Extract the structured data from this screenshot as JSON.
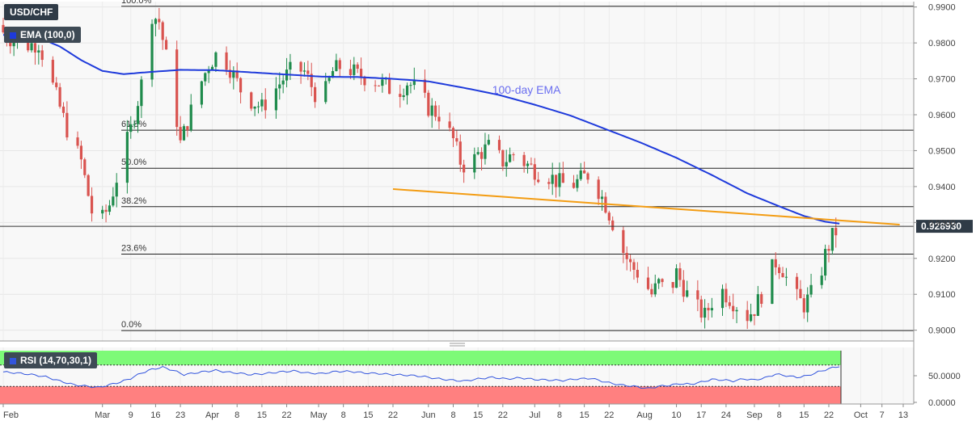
{
  "chart_data": {
    "type": "candlestick",
    "symbol": "USD/CHF",
    "indicator_label": "EMA (100,0)",
    "ema_annotation": "100-day EMA",
    "y_range": [
      0.897,
      0.9915
    ],
    "y_ticks": [
      "0.9900",
      "0.9800",
      "0.9700",
      "0.9600",
      "0.9500",
      "0.9400",
      "0.9300",
      "0.9200",
      "0.9100",
      "0.9000"
    ],
    "current_price": "0.928930",
    "current_value": 0.92893,
    "x_labels": [
      {
        "label": "Feb",
        "day": 0
      },
      {
        "label": "Mar",
        "day": 28
      },
      {
        "label": "9",
        "day": 36
      },
      {
        "label": "16",
        "day": 43
      },
      {
        "label": "23",
        "day": 50
      },
      {
        "label": "Apr",
        "day": 59
      },
      {
        "label": "8",
        "day": 66
      },
      {
        "label": "15",
        "day": 73
      },
      {
        "label": "22",
        "day": 80
      },
      {
        "label": "May",
        "day": 89
      },
      {
        "label": "8",
        "day": 96
      },
      {
        "label": "15",
        "day": 103
      },
      {
        "label": "22",
        "day": 110
      },
      {
        "label": "Jun",
        "day": 120
      },
      {
        "label": "8",
        "day": 127
      },
      {
        "label": "15",
        "day": 134
      },
      {
        "label": "22",
        "day": 141
      },
      {
        "label": "Jul",
        "day": 150
      },
      {
        "label": "8",
        "day": 157
      },
      {
        "label": "15",
        "day": 164
      },
      {
        "label": "22",
        "day": 171
      },
      {
        "label": "Aug",
        "day": 181
      },
      {
        "label": "10",
        "day": 190
      },
      {
        "label": "17",
        "day": 197
      },
      {
        "label": "24",
        "day": 204
      },
      {
        "label": "Sep",
        "day": 212
      },
      {
        "label": "8",
        "day": 219
      },
      {
        "label": "15",
        "day": 226
      },
      {
        "label": "22",
        "day": 233
      },
      {
        "label": "Oct",
        "day": 242
      },
      {
        "label": "7",
        "day": 248
      },
      {
        "label": "13",
        "day": 254
      }
    ],
    "fibonacci": [
      {
        "label": "100.0%",
        "value": 0.9902
      },
      {
        "label": "61.8%",
        "value": 0.9557
      },
      {
        "label": "50.0%",
        "value": 0.9451
      },
      {
        "label": "38.2%",
        "value": 0.9344
      },
      {
        "label": "23.6%",
        "value": 0.9212
      },
      {
        "label": "0.0%",
        "value": 0.8999
      }
    ],
    "trendline": {
      "start": [
        110,
        0.9393
      ],
      "end": [
        253,
        0.9294
      ]
    },
    "close_anchors": [
      [
        0,
        0.983
      ],
      [
        5,
        0.979
      ],
      [
        10,
        0.98
      ],
      [
        14,
        0.968
      ],
      [
        18,
        0.956
      ],
      [
        22,
        0.947
      ],
      [
        25,
        0.933
      ],
      [
        27,
        0.929
      ],
      [
        30,
        0.935
      ],
      [
        33,
        0.946
      ],
      [
        36,
        0.956
      ],
      [
        38,
        0.964
      ],
      [
        40,
        0.973
      ],
      [
        42,
        0.988
      ],
      [
        44,
        0.986
      ],
      [
        46,
        0.976
      ],
      [
        48,
        0.965
      ],
      [
        50,
        0.952
      ],
      [
        52,
        0.958
      ],
      [
        55,
        0.967
      ],
      [
        58,
        0.974
      ],
      [
        61,
        0.978
      ],
      [
        64,
        0.973
      ],
      [
        67,
        0.967
      ],
      [
        70,
        0.964
      ],
      [
        73,
        0.962
      ],
      [
        76,
        0.966
      ],
      [
        79,
        0.97
      ],
      [
        82,
        0.973
      ],
      [
        85,
        0.972
      ],
      [
        88,
        0.966
      ],
      [
        90,
        0.964
      ],
      [
        93,
        0.972
      ],
      [
        96,
        0.974
      ],
      [
        100,
        0.971
      ],
      [
        104,
        0.97
      ],
      [
        108,
        0.968
      ],
      [
        111,
        0.966
      ],
      [
        114,
        0.969
      ],
      [
        117,
        0.967
      ],
      [
        120,
        0.962
      ],
      [
        123,
        0.96
      ],
      [
        127,
        0.953
      ],
      [
        129,
        0.947
      ],
      [
        131,
        0.945
      ],
      [
        134,
        0.949
      ],
      [
        137,
        0.951
      ],
      [
        141,
        0.947
      ],
      [
        144,
        0.949
      ],
      [
        148,
        0.946
      ],
      [
        151,
        0.944
      ],
      [
        154,
        0.943
      ],
      [
        157,
        0.941
      ],
      [
        160,
        0.94
      ],
      [
        163,
        0.942
      ],
      [
        166,
        0.944
      ],
      [
        168,
        0.939
      ],
      [
        170,
        0.935
      ],
      [
        172,
        0.93
      ],
      [
        174,
        0.924
      ],
      [
        177,
        0.918
      ],
      [
        180,
        0.915
      ],
      [
        183,
        0.91
      ],
      [
        185,
        0.913
      ],
      [
        188,
        0.91
      ],
      [
        190,
        0.916
      ],
      [
        192,
        0.912
      ],
      [
        194,
        0.908
      ],
      [
        196,
        0.906
      ],
      [
        198,
        0.904
      ],
      [
        200,
        0.908
      ],
      [
        202,
        0.912
      ],
      [
        204,
        0.91
      ],
      [
        206,
        0.908
      ],
      [
        208,
        0.906
      ],
      [
        210,
        0.904
      ],
      [
        212,
        0.906
      ],
      [
        214,
        0.91
      ],
      [
        216,
        0.915
      ],
      [
        218,
        0.919
      ],
      [
        220,
        0.917
      ],
      [
        222,
        0.912
      ],
      [
        224,
        0.909
      ],
      [
        226,
        0.907
      ],
      [
        228,
        0.91
      ],
      [
        230,
        0.913
      ],
      [
        232,
        0.921
      ],
      [
        234,
        0.926
      ],
      [
        236,
        0.9289
      ]
    ],
    "ema_anchors": [
      [
        0,
        0.9822
      ],
      [
        5,
        0.9823
      ],
      [
        10,
        0.9815
      ],
      [
        16,
        0.979
      ],
      [
        22,
        0.9752
      ],
      [
        28,
        0.9722
      ],
      [
        34,
        0.9713
      ],
      [
        40,
        0.9718
      ],
      [
        50,
        0.9725
      ],
      [
        60,
        0.9724
      ],
      [
        70,
        0.9718
      ],
      [
        80,
        0.9712
      ],
      [
        90,
        0.9706
      ],
      [
        100,
        0.9705
      ],
      [
        110,
        0.97
      ],
      [
        120,
        0.9693
      ],
      [
        130,
        0.9675
      ],
      [
        140,
        0.9655
      ],
      [
        150,
        0.9628
      ],
      [
        160,
        0.9598
      ],
      [
        170,
        0.956
      ],
      [
        180,
        0.9522
      ],
      [
        190,
        0.948
      ],
      [
        200,
        0.9432
      ],
      [
        210,
        0.9381
      ],
      [
        220,
        0.9341
      ],
      [
        226,
        0.9318
      ],
      [
        232,
        0.9302
      ],
      [
        236,
        0.9297
      ]
    ],
    "rsi": {
      "label": "RSI (14,70,30,1)",
      "y_ticks": [
        "50.0000",
        "0.0000"
      ],
      "overbought": 70,
      "oversold": 30,
      "anchors": [
        [
          0,
          57
        ],
        [
          4,
          55
        ],
        [
          8,
          52
        ],
        [
          12,
          48
        ],
        [
          16,
          40
        ],
        [
          20,
          33
        ],
        [
          24,
          30
        ],
        [
          27,
          28
        ],
        [
          30,
          33
        ],
        [
          33,
          38
        ],
        [
          36,
          45
        ],
        [
          39,
          55
        ],
        [
          42,
          62
        ],
        [
          45,
          66
        ],
        [
          48,
          60
        ],
        [
          51,
          52
        ],
        [
          54,
          55
        ],
        [
          57,
          58
        ],
        [
          60,
          60
        ],
        [
          63,
          57
        ],
        [
          66,
          55
        ],
        [
          70,
          52
        ],
        [
          74,
          54
        ],
        [
          78,
          57
        ],
        [
          82,
          59
        ],
        [
          86,
          55
        ],
        [
          90,
          54
        ],
        [
          94,
          58
        ],
        [
          98,
          58
        ],
        [
          102,
          55
        ],
        [
          106,
          54
        ],
        [
          110,
          52
        ],
        [
          114,
          51
        ],
        [
          118,
          49
        ],
        [
          122,
          45
        ],
        [
          126,
          42
        ],
        [
          130,
          40
        ],
        [
          134,
          44
        ],
        [
          138,
          47
        ],
        [
          142,
          44
        ],
        [
          146,
          46
        ],
        [
          150,
          43
        ],
        [
          154,
          42
        ],
        [
          158,
          41
        ],
        [
          162,
          44
        ],
        [
          166,
          45
        ],
        [
          170,
          38
        ],
        [
          174,
          33
        ],
        [
          178,
          30
        ],
        [
          182,
          26
        ],
        [
          185,
          30
        ],
        [
          188,
          32
        ],
        [
          191,
          35
        ],
        [
          194,
          34
        ],
        [
          197,
          38
        ],
        [
          200,
          43
        ],
        [
          203,
          42
        ],
        [
          206,
          40
        ],
        [
          209,
          44
        ],
        [
          212,
          42
        ],
        [
          215,
          46
        ],
        [
          218,
          53
        ],
        [
          221,
          50
        ],
        [
          224,
          47
        ],
        [
          227,
          50
        ],
        [
          230,
          57
        ],
        [
          233,
          63
        ],
        [
          236,
          68
        ]
      ]
    },
    "colors": {
      "bull": "#1f8b4c",
      "bear": "#d9534f",
      "ema": "#1e3adb",
      "ema_label": "#6a6ef0",
      "trendline": "#f39c12",
      "rsi_line": "#3355dd",
      "overbought_zone": "#7dfa78",
      "oversold_zone": "#ff8080",
      "price_tag": "#2f3b47"
    }
  }
}
